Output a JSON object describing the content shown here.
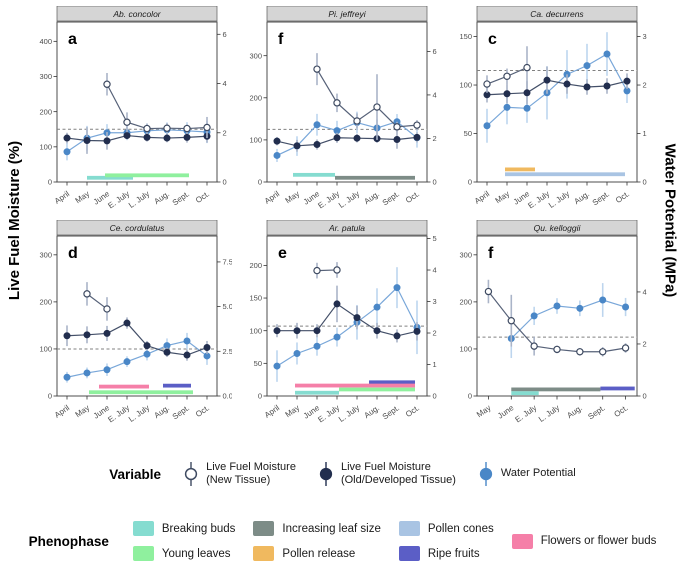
{
  "figure": {
    "left_axis_title": "Live Fuel Moisture (%)",
    "right_axis_title": "Water Potential (MPa)"
  },
  "variable_legend": {
    "label": "Variable",
    "items": [
      {
        "key": "lfm-new",
        "marker": "open-circle",
        "color": "#3e4a61",
        "line1": "Live Fuel Moisture",
        "line2": "(New Tissue)"
      },
      {
        "key": "lfm-old",
        "marker": "filled-circle",
        "color": "#222e4e",
        "line1": "Live Fuel Moisture",
        "line2": "(Old/Developed Tissue)"
      },
      {
        "key": "water-potential",
        "marker": "filled-circle",
        "color": "#4a87c7",
        "line1": "Water Potential",
        "line2": ""
      }
    ]
  },
  "phenophase_legend": {
    "label": "Phenophase",
    "columns": [
      [
        {
          "label": "Breaking buds",
          "color": "#85dcd0"
        },
        {
          "label": "Young leaves",
          "color": "#8ff09e"
        }
      ],
      [
        {
          "label": "Increasing leaf size",
          "color": "#7d8c87"
        },
        {
          "label": "Pollen release",
          "color": "#f0b95f"
        }
      ],
      [
        {
          "label": "Pollen cones",
          "color": "#a9c4e3"
        },
        {
          "label": "Ripe fruits",
          "color": "#5b5ec6"
        }
      ],
      [
        {
          "label": "Flowers or flower buds",
          "color": "#f57fa8"
        }
      ]
    ]
  },
  "phase_colors": {
    "Breaking buds": "#85dcd0",
    "Young leaves": "#8ff09e",
    "Increasing leaf size": "#7d8c87",
    "Pollen release": "#f0b95f",
    "Pollen cones": "#a9c4e3",
    "Ripe fruits": "#5b5ec6",
    "Flowers or flower buds": "#f57fa8"
  },
  "series_style": {
    "lfm_new": {
      "point": "#ffffff",
      "stroke": "#3e4a61",
      "line": "#566178",
      "err": "#aab4c8"
    },
    "lfm_old": {
      "point": "#222e4e",
      "stroke": "#222e4e",
      "line": "#434f68",
      "err": "#aab4c8"
    },
    "water_potential": {
      "point": "#4a87c7",
      "stroke": "#4a87c7",
      "line": "#79a7d9",
      "err": "#bdd5ee"
    }
  },
  "chart_data": [
    {
      "id": "a",
      "letter": "a",
      "title": "Ab. concolor",
      "type": "line",
      "months": [
        "April",
        "May",
        "June",
        "E. July",
        "L. July",
        "Aug.",
        "Sept.",
        "Oct."
      ],
      "ylim_left": [
        0,
        455
      ],
      "yticks_left": [
        0,
        100,
        200,
        300,
        400
      ],
      "ylim_right": [
        0,
        6.5
      ],
      "yticks_right": [
        {
          "v": 0,
          "t": "0"
        },
        {
          "v": 2,
          "t": "2"
        },
        {
          "v": 4,
          "t": "4"
        },
        {
          "v": 6,
          "t": "6"
        }
      ],
      "dashed_lfm": 150,
      "lfm_new": [
        {
          "m": 2,
          "v": 278,
          "e": 32
        },
        {
          "m": 3,
          "v": 170,
          "e": 28
        },
        {
          "m": 4,
          "v": 152,
          "e": 14
        },
        {
          "m": 5,
          "v": 153,
          "e": 14
        },
        {
          "m": 6,
          "v": 152,
          "e": 12
        },
        {
          "m": 7,
          "v": 155,
          "e": 30
        }
      ],
      "lfm_old": [
        {
          "m": 0,
          "v": 125,
          "e": 15
        },
        {
          "m": 1,
          "v": 118,
          "e": 38
        },
        {
          "m": 2,
          "v": 117,
          "e": 25
        },
        {
          "m": 3,
          "v": 132,
          "e": 10
        },
        {
          "m": 4,
          "v": 127,
          "e": 12
        },
        {
          "m": 5,
          "v": 125,
          "e": 12
        },
        {
          "m": 6,
          "v": 127,
          "e": 15
        },
        {
          "m": 7,
          "v": 130,
          "e": 18
        }
      ],
      "water_potential": [
        {
          "m": 0,
          "v": 1.23,
          "e": 0.35
        },
        {
          "m": 1,
          "v": 1.78,
          "e": 0.5
        },
        {
          "m": 2,
          "v": 2.0,
          "e": 0.35
        },
        {
          "m": 3,
          "v": 2.0,
          "e": 0.3
        },
        {
          "m": 4,
          "v": 2.08,
          "e": 0.3
        },
        {
          "m": 5,
          "v": 2.12,
          "e": 0.3
        },
        {
          "m": 6,
          "v": 2.08,
          "e": 0.35
        },
        {
          "m": 7,
          "v": 2.03,
          "e": 0.45
        }
      ],
      "phenophase_bars": [
        {
          "phase": "Breaking buds",
          "from": 1.0,
          "to": 3.3,
          "y": 12
        },
        {
          "phase": "Young leaves",
          "from": 1.9,
          "to": 6.1,
          "y": 19
        }
      ]
    },
    {
      "id": "b",
      "letter": "f",
      "title": "Pi. jeffreyi",
      "type": "line",
      "months": [
        "April",
        "May",
        "June",
        "E. July",
        "L. July",
        "Aug.",
        "Sept.",
        "Oct."
      ],
      "ylim_left": [
        0,
        380
      ],
      "yticks_left": [
        0,
        100,
        200,
        300
      ],
      "ylim_right": [
        0,
        7.35
      ],
      "yticks_right": [
        {
          "v": 0,
          "t": "0"
        },
        {
          "v": 2,
          "t": "2"
        },
        {
          "v": 4,
          "t": "4"
        },
        {
          "v": 6,
          "t": "6"
        }
      ],
      "dashed_lfm": 125,
      "lfm_new": [
        {
          "m": 2,
          "v": 268,
          "e": 38
        },
        {
          "m": 3,
          "v": 188,
          "e": 22
        },
        {
          "m": 4,
          "v": 145,
          "e": 18
        },
        {
          "m": 5,
          "v": 178,
          "e": 78
        },
        {
          "m": 6,
          "v": 131,
          "e": 12
        },
        {
          "m": 7,
          "v": 135,
          "e": 12
        }
      ],
      "lfm_old": [
        {
          "m": 0,
          "v": 97,
          "e": 10
        },
        {
          "m": 1,
          "v": 86,
          "e": 14
        },
        {
          "m": 2,
          "v": 89,
          "e": 12
        },
        {
          "m": 3,
          "v": 105,
          "e": 12
        },
        {
          "m": 4,
          "v": 104,
          "e": 10
        },
        {
          "m": 5,
          "v": 103,
          "e": 10
        },
        {
          "m": 6,
          "v": 101,
          "e": 22
        },
        {
          "m": 7,
          "v": 106,
          "e": 12
        }
      ],
      "water_potential": [
        {
          "m": 0,
          "v": 1.22,
          "e": 0.3
        },
        {
          "m": 1,
          "v": 1.65,
          "e": 0.45
        },
        {
          "m": 2,
          "v": 2.63,
          "e": 0.5
        },
        {
          "m": 3,
          "v": 2.36,
          "e": 0.45
        },
        {
          "m": 4,
          "v": 2.73,
          "e": 0.5
        },
        {
          "m": 5,
          "v": 2.48,
          "e": 0.4
        },
        {
          "m": 6,
          "v": 2.77,
          "e": 0.35
        },
        {
          "m": 7,
          "v": 2.03,
          "e": 0.45
        }
      ],
      "phenophase_bars": [
        {
          "phase": "Breaking buds",
          "from": 0.8,
          "to": 2.9,
          "y": 17
        },
        {
          "phase": "Increasing leaf size",
          "from": 2.9,
          "to": 6.9,
          "y": 10
        }
      ]
    },
    {
      "id": "c",
      "letter": "c",
      "title": "Ca. decurrens",
      "type": "line",
      "months": [
        "April",
        "May",
        "June",
        "E. July",
        "L. July",
        "Aug.",
        "Sept.",
        "Oct."
      ],
      "ylim_left": [
        0,
        165
      ],
      "yticks_left": [
        0,
        50,
        100,
        150
      ],
      "ylim_right": [
        0,
        3.3
      ],
      "yticks_right": [
        {
          "v": 0,
          "t": "0"
        },
        {
          "v": 1,
          "t": "1"
        },
        {
          "v": 2,
          "t": "2"
        },
        {
          "v": 3,
          "t": "3"
        }
      ],
      "dashed_lfm": 115,
      "lfm_new": [
        {
          "m": 0,
          "v": 101,
          "e": 9
        },
        {
          "m": 1,
          "v": 109,
          "e": 8
        },
        {
          "m": 2,
          "v": 118,
          "e": 22
        }
      ],
      "lfm_old": [
        {
          "m": 0,
          "v": 90,
          "e": 8
        },
        {
          "m": 1,
          "v": 91,
          "e": 10
        },
        {
          "m": 2,
          "v": 92,
          "e": 12
        },
        {
          "m": 3,
          "v": 105,
          "e": 14
        },
        {
          "m": 4,
          "v": 101,
          "e": 10
        },
        {
          "m": 5,
          "v": 98,
          "e": 8
        },
        {
          "m": 6,
          "v": 99,
          "e": 8
        },
        {
          "m": 7,
          "v": 104,
          "e": 8
        }
      ],
      "water_potential": [
        {
          "m": 0,
          "v": 1.16,
          "e": 0.35
        },
        {
          "m": 1,
          "v": 1.54,
          "e": 0.35
        },
        {
          "m": 2,
          "v": 1.52,
          "e": 0.3
        },
        {
          "m": 3,
          "v": 1.84,
          "e": 0.55
        },
        {
          "m": 4,
          "v": 2.22,
          "e": 0.5
        },
        {
          "m": 5,
          "v": 2.4,
          "e": 0.45
        },
        {
          "m": 6,
          "v": 2.64,
          "e": 0.45
        },
        {
          "m": 7,
          "v": 1.88,
          "e": 0.25
        }
      ],
      "phenophase_bars": [
        {
          "phase": "Pollen release",
          "from": 0.9,
          "to": 2.4,
          "y": 13
        },
        {
          "phase": "Pollen cones",
          "from": 0.9,
          "to": 6.9,
          "y": 8
        }
      ]
    },
    {
      "id": "d",
      "letter": "d",
      "title": "Ce. cordulatus",
      "type": "line",
      "months": [
        "April",
        "May",
        "June",
        "E. July",
        "L. July",
        "Aug.",
        "Sept.",
        "Oct."
      ],
      "ylim_left": [
        0,
        340
      ],
      "yticks_left": [
        0,
        100,
        200,
        300
      ],
      "ylim_right": [
        0,
        8.95
      ],
      "yticks_right": [
        {
          "v": 0,
          "t": "0.0"
        },
        {
          "v": 2.5,
          "t": "2.5"
        },
        {
          "v": 5,
          "t": "5.0"
        },
        {
          "v": 7.5,
          "t": "7.5"
        }
      ],
      "dashed_lfm": 100,
      "lfm_new": [
        {
          "m": 1,
          "v": 217,
          "e": 25
        },
        {
          "m": 2,
          "v": 185,
          "e": 25
        }
      ],
      "lfm_old": [
        {
          "m": 0,
          "v": 128,
          "e": 22
        },
        {
          "m": 1,
          "v": 130,
          "e": 18
        },
        {
          "m": 2,
          "v": 133,
          "e": 16
        },
        {
          "m": 3,
          "v": 155,
          "e": 12
        },
        {
          "m": 4,
          "v": 107,
          "e": 10
        },
        {
          "m": 5,
          "v": 93,
          "e": 10
        },
        {
          "m": 6,
          "v": 87,
          "e": 12
        },
        {
          "m": 7,
          "v": 103,
          "e": 14
        }
      ],
      "water_potential": [
        {
          "m": 0,
          "v": 1.05,
          "e": 0.3
        },
        {
          "m": 1,
          "v": 1.29,
          "e": 0.3
        },
        {
          "m": 2,
          "v": 1.47,
          "e": 0.35
        },
        {
          "m": 3,
          "v": 1.92,
          "e": 0.3
        },
        {
          "m": 4,
          "v": 2.34,
          "e": 0.35
        },
        {
          "m": 5,
          "v": 2.82,
          "e": 0.4
        },
        {
          "m": 6,
          "v": 3.08,
          "e": 0.45
        },
        {
          "m": 7,
          "v": 2.24,
          "e": 0.5
        }
      ],
      "phenophase_bars": [
        {
          "phase": "Flowers or flower buds",
          "from": 1.6,
          "to": 4.1,
          "y": 20
        },
        {
          "phase": "Ripe fruits",
          "from": 4.8,
          "to": 6.2,
          "y": 22
        },
        {
          "phase": "Young leaves",
          "from": 1.1,
          "to": 6.3,
          "y": 8
        }
      ]
    },
    {
      "id": "e",
      "letter": "e",
      "title": "Ar. patula",
      "type": "line",
      "months": [
        "April",
        "May",
        "June",
        "E. July",
        "L. July",
        "Aug.",
        "Sept.",
        "Oct."
      ],
      "ylim_left": [
        0,
        245
      ],
      "yticks_left": [
        0,
        50,
        100,
        150,
        200
      ],
      "ylim_right": [
        0,
        5.08
      ],
      "yticks_right": [
        {
          "v": 0,
          "t": "0"
        },
        {
          "v": 1,
          "t": "1"
        },
        {
          "v": 2,
          "t": "2"
        },
        {
          "v": 3,
          "t": "3"
        },
        {
          "v": 4,
          "t": "4"
        },
        {
          "v": 5,
          "t": "5"
        }
      ],
      "dashed_lfm": 107,
      "lfm_new": [
        {
          "m": 2,
          "v": 192,
          "e": 12
        },
        {
          "m": 3,
          "v": 193,
          "e": 12
        }
      ],
      "lfm_old": [
        {
          "m": 0,
          "v": 100,
          "e": 10
        },
        {
          "m": 1,
          "v": 100,
          "e": 12
        },
        {
          "m": 2,
          "v": 100,
          "e": 10
        },
        {
          "m": 3,
          "v": 141,
          "e": 28
        },
        {
          "m": 4,
          "v": 120,
          "e": 18
        },
        {
          "m": 5,
          "v": 100,
          "e": 12
        },
        {
          "m": 6,
          "v": 92,
          "e": 10
        },
        {
          "m": 7,
          "v": 99,
          "e": 14
        }
      ],
      "water_potential": [
        {
          "m": 0,
          "v": 0.95,
          "e": 0.5
        },
        {
          "m": 1,
          "v": 1.35,
          "e": 0.35
        },
        {
          "m": 2,
          "v": 1.58,
          "e": 0.3
        },
        {
          "m": 3,
          "v": 1.87,
          "e": 0.3
        },
        {
          "m": 4,
          "v": 2.34,
          "e": 0.55
        },
        {
          "m": 5,
          "v": 2.82,
          "e": 0.6
        },
        {
          "m": 6,
          "v": 3.44,
          "e": 0.65
        },
        {
          "m": 7,
          "v": 2.18,
          "e": 0.85
        }
      ],
      "phenophase_bars": [
        {
          "phase": "Ripe fruits",
          "from": 4.6,
          "to": 6.9,
          "y": 21
        },
        {
          "phase": "Flowers or flower buds",
          "from": 0.9,
          "to": 6.9,
          "y": 16
        },
        {
          "phase": "Young leaves",
          "from": 3.1,
          "to": 6.9,
          "y": 10
        },
        {
          "phase": "Breaking buds",
          "from": 0.9,
          "to": 3.1,
          "y": 5
        }
      ]
    },
    {
      "id": "f",
      "letter": "f",
      "title": "Qu. kelloggii",
      "type": "line",
      "months": [
        "May",
        "June",
        "E. July",
        "L. July",
        "Aug.",
        "Sept.",
        "Oct."
      ],
      "ylim_left": [
        0,
        340
      ],
      "yticks_left": [
        0,
        100,
        200,
        300
      ],
      "ylim_right": [
        0,
        6.15
      ],
      "yticks_right": [
        {
          "v": 0,
          "t": "0"
        },
        {
          "v": 2,
          "t": "2"
        },
        {
          "v": 4,
          "t": "4"
        }
      ],
      "dashed_lfm": 125,
      "lfm_new": [
        {
          "m": 0,
          "v": 222,
          "e": 25
        },
        {
          "m": 1,
          "v": 160,
          "e": 55
        },
        {
          "m": 2,
          "v": 106,
          "e": 20
        },
        {
          "m": 3,
          "v": 99,
          "e": 8
        },
        {
          "m": 4,
          "v": 94,
          "e": 8
        },
        {
          "m": 5,
          "v": 94,
          "e": 10
        },
        {
          "m": 6,
          "v": 102,
          "e": 10
        }
      ],
      "lfm_old": [],
      "water_potential": [
        {
          "m": 1,
          "v": 2.21,
          "e": 0.75
        },
        {
          "m": 2,
          "v": 3.08,
          "e": 0.35
        },
        {
          "m": 3,
          "v": 3.46,
          "e": 0.3
        },
        {
          "m": 4,
          "v": 3.37,
          "e": 0.3
        },
        {
          "m": 5,
          "v": 3.69,
          "e": 0.65
        },
        {
          "m": 6,
          "v": 3.42,
          "e": 0.35
        }
      ],
      "phenophase_bars": [
        {
          "phase": "Increasing leaf size",
          "from": 1.0,
          "to": 4.9,
          "y": 14
        },
        {
          "phase": "Ripe fruits",
          "from": 4.9,
          "to": 6.4,
          "y": 16
        },
        {
          "phase": "Breaking buds",
          "from": 1.0,
          "to": 2.2,
          "y": 6
        }
      ]
    }
  ]
}
